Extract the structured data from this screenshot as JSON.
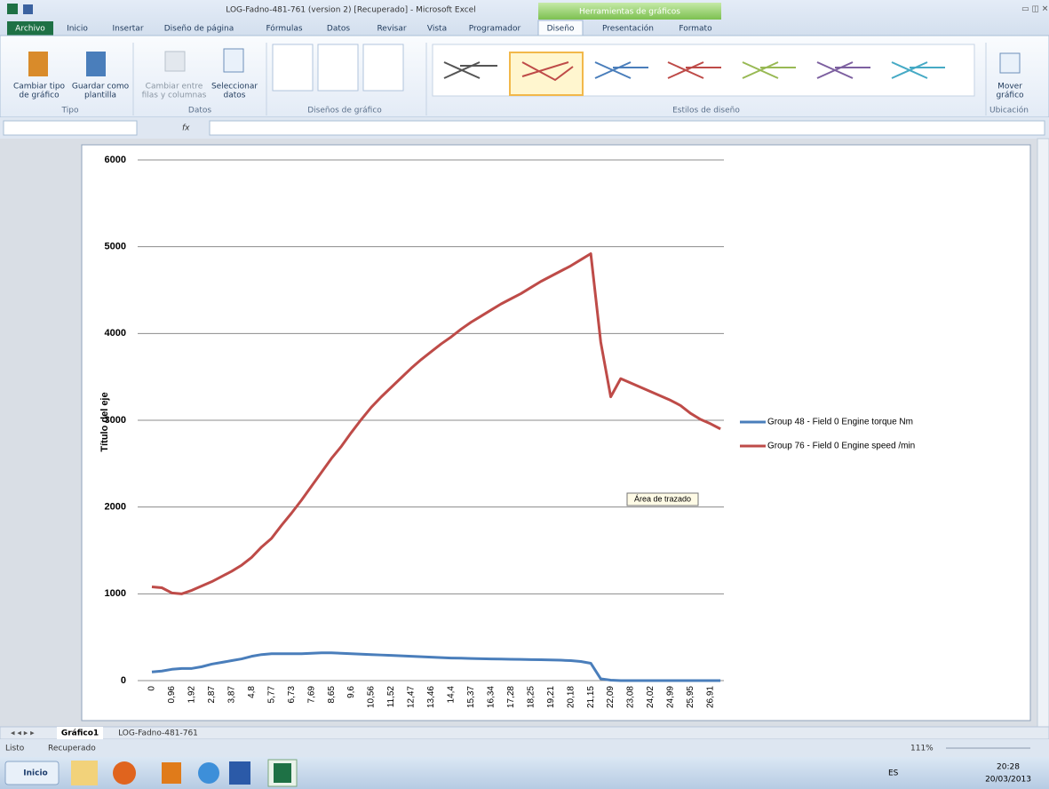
{
  "window": {
    "title": "LOG-Fadno-481-761 (version 2) [Recuperado]  -  Microsoft Excel",
    "context_tab": "Herramientas de gráficos"
  },
  "tabs": [
    "Archivo",
    "Inicio",
    "Insertar",
    "Diseño de página",
    "Fórmulas",
    "Datos",
    "Revisar",
    "Vista",
    "Programador",
    "Diseño",
    "Presentación",
    "Formato"
  ],
  "ribbon": {
    "buttons": [
      {
        "label": [
          "Cambiar tipo",
          "de gráfico"
        ]
      },
      {
        "label": [
          "Guardar como",
          "plantilla"
        ]
      },
      {
        "label": [
          "Cambiar entre",
          "filas y columnas"
        ]
      },
      {
        "label": [
          "Seleccionar",
          "datos"
        ]
      },
      {
        "label": [
          "Mover",
          "gráfico"
        ]
      }
    ],
    "groups": [
      "Tipo",
      "Datos",
      "Diseños de gráfico",
      "Estilos de diseño",
      "Ubicación"
    ]
  },
  "formula_bar": {
    "fx": "fx"
  },
  "sheet_tabs": [
    "Gráfico1",
    "LOG-Fadno-481-761"
  ],
  "status": {
    "ready": "Listo",
    "recovered": "Recuperado",
    "zoom": "111%"
  },
  "taskbar": {
    "start": "Inicio",
    "lang": "ES",
    "time": "20:28",
    "date": "20/03/2013"
  },
  "tooltip": "Área de trazado",
  "chart_data": {
    "type": "line",
    "y_label": "Título del eje",
    "categories": [
      "0",
      null,
      "0,96",
      null,
      "1,92",
      null,
      "2,87",
      null,
      "3,87",
      null,
      "4,8",
      null,
      "5,77",
      null,
      "6,73",
      null,
      "7,69",
      null,
      "8,65",
      null,
      "9,6",
      null,
      "10,56",
      null,
      "11,52",
      null,
      "12,47",
      null,
      "13,46",
      null,
      "14,4",
      null,
      "15,37",
      null,
      "16,34",
      null,
      "17,28",
      null,
      "18,25",
      null,
      "19,21",
      null,
      "20,18",
      null,
      "21,15",
      null,
      "22,09",
      null,
      "23,08",
      null,
      "24,02",
      null,
      "24,99",
      null,
      "25,95",
      null,
      "26,91",
      null
    ],
    "series": [
      {
        "name": "Group 48 - Field 0 Engine torque  Nm",
        "color": "#4a7ebb",
        "values": [
          100,
          110,
          130,
          140,
          140,
          160,
          190,
          210,
          230,
          250,
          280,
          300,
          310,
          310,
          310,
          310,
          315,
          320,
          320,
          315,
          310,
          305,
          300,
          295,
          290,
          285,
          280,
          275,
          270,
          265,
          260,
          258,
          255,
          252,
          250,
          248,
          246,
          244,
          242,
          240,
          238,
          235,
          230,
          220,
          200,
          20,
          5,
          0,
          0,
          0,
          0,
          0,
          0,
          0,
          0,
          0,
          0,
          0
        ]
      },
      {
        "name": "Group 76 - Field 0 Engine speed  /min",
        "color": "#be4b48",
        "values": [
          1080,
          1070,
          1010,
          1000,
          1040,
          1090,
          1140,
          1200,
          1260,
          1330,
          1420,
          1540,
          1640,
          1790,
          1930,
          2080,
          2240,
          2400,
          2560,
          2700,
          2860,
          3010,
          3150,
          3270,
          3380,
          3490,
          3600,
          3700,
          3790,
          3880,
          3960,
          4050,
          4130,
          4200,
          4270,
          4340,
          4400,
          4460,
          4530,
          4600,
          4660,
          4720,
          4780,
          4850,
          4920,
          3900,
          3270,
          3480,
          3430,
          3380,
          3330,
          3280,
          3230,
          3170,
          3080,
          3010,
          2960,
          2900
        ]
      }
    ],
    "ylim": [
      0,
      6000
    ],
    "yticks": [
      0,
      1000,
      2000,
      3000,
      4000,
      5000,
      6000
    ],
    "grid": true,
    "legend": "right"
  }
}
